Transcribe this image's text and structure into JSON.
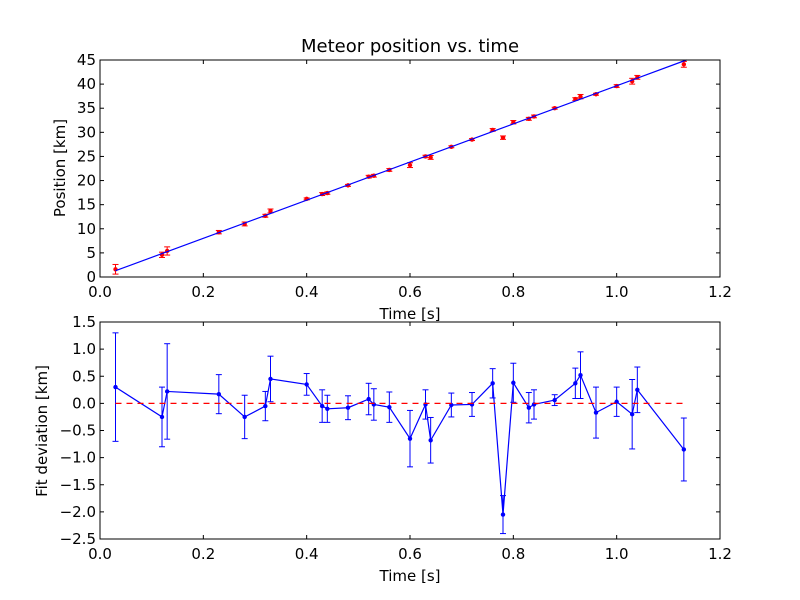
{
  "chart_data": [
    {
      "type": "scatter",
      "title": "Meteor position vs. time",
      "xlabel": "Time [s]",
      "ylabel": "Position [km]",
      "xlim": [
        0.0,
        1.2
      ],
      "ylim": [
        0,
        45
      ],
      "xticks": [
        "0.0",
        "0.2",
        "0.4",
        "0.6",
        "0.8",
        "1.0",
        "1.2"
      ],
      "yticks": [
        "0",
        "5",
        "10",
        "15",
        "20",
        "25",
        "30",
        "35",
        "40",
        "45"
      ],
      "grid": false,
      "series": [
        {
          "kind": "errorbar-points",
          "color": "#ff0000",
          "x": [
            0.03,
            0.12,
            0.13,
            0.23,
            0.28,
            0.32,
            0.33,
            0.4,
            0.43,
            0.44,
            0.48,
            0.52,
            0.53,
            0.56,
            0.6,
            0.63,
            0.64,
            0.68,
            0.72,
            0.76,
            0.78,
            0.8,
            0.83,
            0.84,
            0.88,
            0.92,
            0.93,
            0.96,
            1.0,
            1.03,
            1.04,
            1.13
          ],
          "y": [
            1.6,
            4.6,
            5.4,
            9.3,
            11.0,
            12.7,
            13.7,
            16.2,
            17.2,
            17.4,
            19.0,
            20.8,
            21.0,
            22.2,
            23.2,
            25.0,
            24.8,
            27.0,
            28.5,
            30.5,
            28.9,
            32.1,
            32.8,
            33.3,
            35.0,
            36.9,
            37.4,
            37.9,
            39.6,
            40.6,
            41.4,
            44.1
          ],
          "err": [
            1.0,
            0.55,
            0.85,
            0.35,
            0.4,
            0.3,
            0.4,
            0.2,
            0.3,
            0.25,
            0.2,
            0.28,
            0.28,
            0.28,
            0.5,
            0.25,
            0.4,
            0.2,
            0.2,
            0.28,
            0.35,
            0.35,
            0.3,
            0.28,
            0.2,
            0.28,
            0.45,
            0.2,
            0.28,
            0.6,
            0.4,
            0.6
          ]
        },
        {
          "kind": "fit-line",
          "color": "#0000ff",
          "x": [
            0.03,
            1.135
          ],
          "y": [
            1.3,
            45.0
          ]
        }
      ]
    },
    {
      "type": "line",
      "title": "",
      "xlabel": "Time [s]",
      "ylabel": "Fit deviation [km]",
      "xlim": [
        0.0,
        1.2
      ],
      "ylim": [
        -2.5,
        1.5
      ],
      "xticks": [
        "0.0",
        "0.2",
        "0.4",
        "0.6",
        "0.8",
        "1.0",
        "1.2"
      ],
      "yticks": [
        "−2.5",
        "−2.0",
        "−1.5",
        "−1.0",
        "−0.5",
        "0.0",
        "0.5",
        "1.0",
        "1.5"
      ],
      "grid": false,
      "series": [
        {
          "kind": "errorbar-line",
          "color": "#0000ff",
          "x": [
            0.03,
            0.12,
            0.13,
            0.23,
            0.28,
            0.32,
            0.33,
            0.4,
            0.43,
            0.44,
            0.48,
            0.52,
            0.53,
            0.56,
            0.6,
            0.63,
            0.64,
            0.68,
            0.72,
            0.76,
            0.78,
            0.8,
            0.83,
            0.84,
            0.88,
            0.92,
            0.93,
            0.96,
            1.0,
            1.03,
            1.04,
            1.13
          ],
          "y": [
            0.3,
            -0.25,
            0.22,
            0.17,
            -0.25,
            -0.05,
            0.45,
            0.35,
            -0.05,
            -0.1,
            -0.08,
            0.08,
            -0.02,
            -0.07,
            -0.65,
            -0.02,
            -0.68,
            -0.03,
            -0.02,
            0.37,
            -2.05,
            0.38,
            -0.08,
            -0.02,
            0.06,
            0.37,
            0.52,
            -0.17,
            0.03,
            -0.2,
            0.25,
            -0.85
          ],
          "err": [
            1.0,
            0.55,
            0.88,
            0.36,
            0.4,
            0.27,
            0.42,
            0.2,
            0.3,
            0.25,
            0.22,
            0.29,
            0.29,
            0.28,
            0.52,
            0.27,
            0.42,
            0.22,
            0.22,
            0.27,
            0.35,
            0.36,
            0.28,
            0.27,
            0.1,
            0.28,
            0.43,
            0.47,
            0.27,
            0.64,
            0.42,
            0.58
          ]
        },
        {
          "kind": "zero-line",
          "color": "#ff0000",
          "x": [
            0.03,
            1.13
          ],
          "y": [
            0.0,
            0.0
          ]
        }
      ]
    }
  ]
}
